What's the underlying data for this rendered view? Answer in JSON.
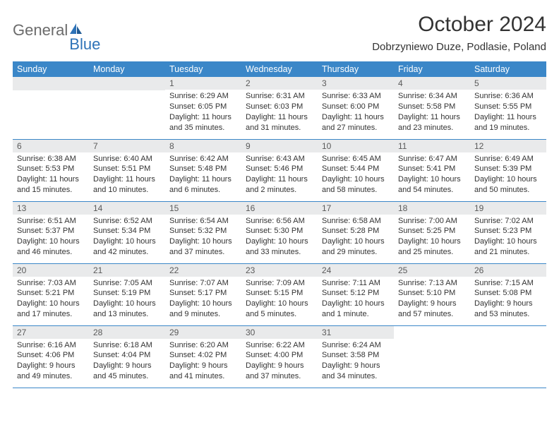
{
  "brand": {
    "part1": "General",
    "part2": "Blue"
  },
  "title": "October 2024",
  "location": "Dobrzyniewo Duze, Podlasie, Poland",
  "colors": {
    "header_bg": "#3b87c8",
    "header_text": "#ffffff",
    "daynum_bg": "#e9eaeb",
    "daynum_text": "#5a5a5a",
    "row_border": "#3b87c8",
    "body_text": "#333333",
    "logo_gray": "#6b6b6b",
    "logo_blue": "#2e73b8",
    "background": "#ffffff"
  },
  "daysOfWeek": [
    "Sunday",
    "Monday",
    "Tuesday",
    "Wednesday",
    "Thursday",
    "Friday",
    "Saturday"
  ],
  "leadingBlanks": 2,
  "days": [
    {
      "n": 1,
      "sunrise": "6:29 AM",
      "sunset": "6:05 PM",
      "daylight": "11 hours and 35 minutes."
    },
    {
      "n": 2,
      "sunrise": "6:31 AM",
      "sunset": "6:03 PM",
      "daylight": "11 hours and 31 minutes."
    },
    {
      "n": 3,
      "sunrise": "6:33 AM",
      "sunset": "6:00 PM",
      "daylight": "11 hours and 27 minutes."
    },
    {
      "n": 4,
      "sunrise": "6:34 AM",
      "sunset": "5:58 PM",
      "daylight": "11 hours and 23 minutes."
    },
    {
      "n": 5,
      "sunrise": "6:36 AM",
      "sunset": "5:55 PM",
      "daylight": "11 hours and 19 minutes."
    },
    {
      "n": 6,
      "sunrise": "6:38 AM",
      "sunset": "5:53 PM",
      "daylight": "11 hours and 15 minutes."
    },
    {
      "n": 7,
      "sunrise": "6:40 AM",
      "sunset": "5:51 PM",
      "daylight": "11 hours and 10 minutes."
    },
    {
      "n": 8,
      "sunrise": "6:42 AM",
      "sunset": "5:48 PM",
      "daylight": "11 hours and 6 minutes."
    },
    {
      "n": 9,
      "sunrise": "6:43 AM",
      "sunset": "5:46 PM",
      "daylight": "11 hours and 2 minutes."
    },
    {
      "n": 10,
      "sunrise": "6:45 AM",
      "sunset": "5:44 PM",
      "daylight": "10 hours and 58 minutes."
    },
    {
      "n": 11,
      "sunrise": "6:47 AM",
      "sunset": "5:41 PM",
      "daylight": "10 hours and 54 minutes."
    },
    {
      "n": 12,
      "sunrise": "6:49 AM",
      "sunset": "5:39 PM",
      "daylight": "10 hours and 50 minutes."
    },
    {
      "n": 13,
      "sunrise": "6:51 AM",
      "sunset": "5:37 PM",
      "daylight": "10 hours and 46 minutes."
    },
    {
      "n": 14,
      "sunrise": "6:52 AM",
      "sunset": "5:34 PM",
      "daylight": "10 hours and 42 minutes."
    },
    {
      "n": 15,
      "sunrise": "6:54 AM",
      "sunset": "5:32 PM",
      "daylight": "10 hours and 37 minutes."
    },
    {
      "n": 16,
      "sunrise": "6:56 AM",
      "sunset": "5:30 PM",
      "daylight": "10 hours and 33 minutes."
    },
    {
      "n": 17,
      "sunrise": "6:58 AM",
      "sunset": "5:28 PM",
      "daylight": "10 hours and 29 minutes."
    },
    {
      "n": 18,
      "sunrise": "7:00 AM",
      "sunset": "5:25 PM",
      "daylight": "10 hours and 25 minutes."
    },
    {
      "n": 19,
      "sunrise": "7:02 AM",
      "sunset": "5:23 PM",
      "daylight": "10 hours and 21 minutes."
    },
    {
      "n": 20,
      "sunrise": "7:03 AM",
      "sunset": "5:21 PM",
      "daylight": "10 hours and 17 minutes."
    },
    {
      "n": 21,
      "sunrise": "7:05 AM",
      "sunset": "5:19 PM",
      "daylight": "10 hours and 13 minutes."
    },
    {
      "n": 22,
      "sunrise": "7:07 AM",
      "sunset": "5:17 PM",
      "daylight": "10 hours and 9 minutes."
    },
    {
      "n": 23,
      "sunrise": "7:09 AM",
      "sunset": "5:15 PM",
      "daylight": "10 hours and 5 minutes."
    },
    {
      "n": 24,
      "sunrise": "7:11 AM",
      "sunset": "5:12 PM",
      "daylight": "10 hours and 1 minute."
    },
    {
      "n": 25,
      "sunrise": "7:13 AM",
      "sunset": "5:10 PM",
      "daylight": "9 hours and 57 minutes."
    },
    {
      "n": 26,
      "sunrise": "7:15 AM",
      "sunset": "5:08 PM",
      "daylight": "9 hours and 53 minutes."
    },
    {
      "n": 27,
      "sunrise": "6:16 AM",
      "sunset": "4:06 PM",
      "daylight": "9 hours and 49 minutes."
    },
    {
      "n": 28,
      "sunrise": "6:18 AM",
      "sunset": "4:04 PM",
      "daylight": "9 hours and 45 minutes."
    },
    {
      "n": 29,
      "sunrise": "6:20 AM",
      "sunset": "4:02 PM",
      "daylight": "9 hours and 41 minutes."
    },
    {
      "n": 30,
      "sunrise": "6:22 AM",
      "sunset": "4:00 PM",
      "daylight": "9 hours and 37 minutes."
    },
    {
      "n": 31,
      "sunrise": "6:24 AM",
      "sunset": "3:58 PM",
      "daylight": "9 hours and 34 minutes."
    }
  ],
  "labels": {
    "sunrise": "Sunrise:",
    "sunset": "Sunset:",
    "daylight": "Daylight:"
  }
}
